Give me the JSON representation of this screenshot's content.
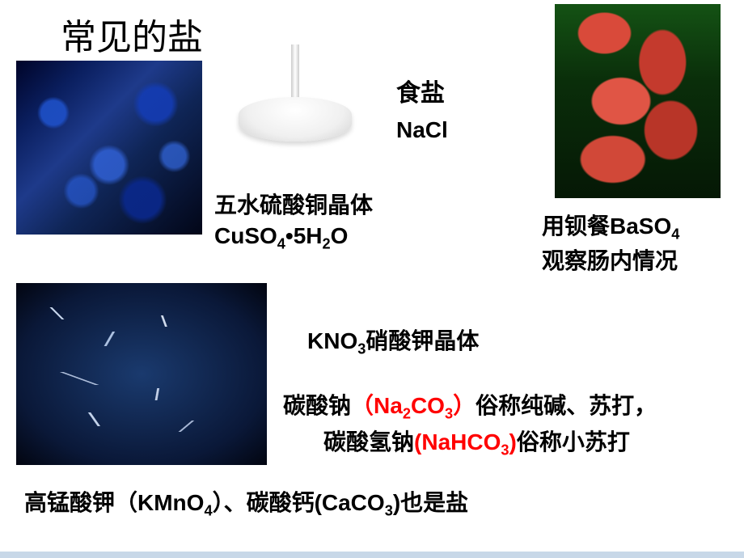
{
  "title": "常见的盐",
  "salt": {
    "name": "食盐",
    "formula": "NaCl"
  },
  "cuso4": {
    "name": "五水硫酸铜晶体",
    "formula_pre": "CuSO",
    "formula_sub1": "4",
    "formula_mid": "•5H",
    "formula_sub2": "2",
    "formula_post": "O"
  },
  "baso4": {
    "line1_pre": "用钡餐BaSO",
    "line1_sub": "4",
    "line2": "观察肠内情况"
  },
  "kno3": {
    "formula_pre": "KNO",
    "formula_sub": "3",
    "name": "硝酸钾晶体"
  },
  "na2co3": {
    "pre": "碳酸钠",
    "paren_open": "（",
    "formula_a": "Na",
    "formula_sub1": "2",
    "formula_b": "CO",
    "formula_sub2": "3",
    "paren_close": "）",
    "suffix": "俗称纯碱、苏打，",
    "color": "#ff0000"
  },
  "nahco3": {
    "pre": "碳酸氢钠",
    "paren_open": "(",
    "formula_a": "NaHCO",
    "formula_sub": "3",
    "paren_close": ")",
    "suffix": "俗称小苏打",
    "color": "#ff0000"
  },
  "kmno4": {
    "pre": "高锰酸钾（KMnO",
    "sub1": "4",
    "mid": "）、碳酸钙(CaCO",
    "sub2": "3",
    "post": ")也是盐"
  },
  "colors": {
    "text": "#000000",
    "highlight": "#ff0000",
    "crystal_bg": "#0a1e5e",
    "intestine_bg": "#0a2e0a",
    "kno3_bg": "#0a1838"
  }
}
